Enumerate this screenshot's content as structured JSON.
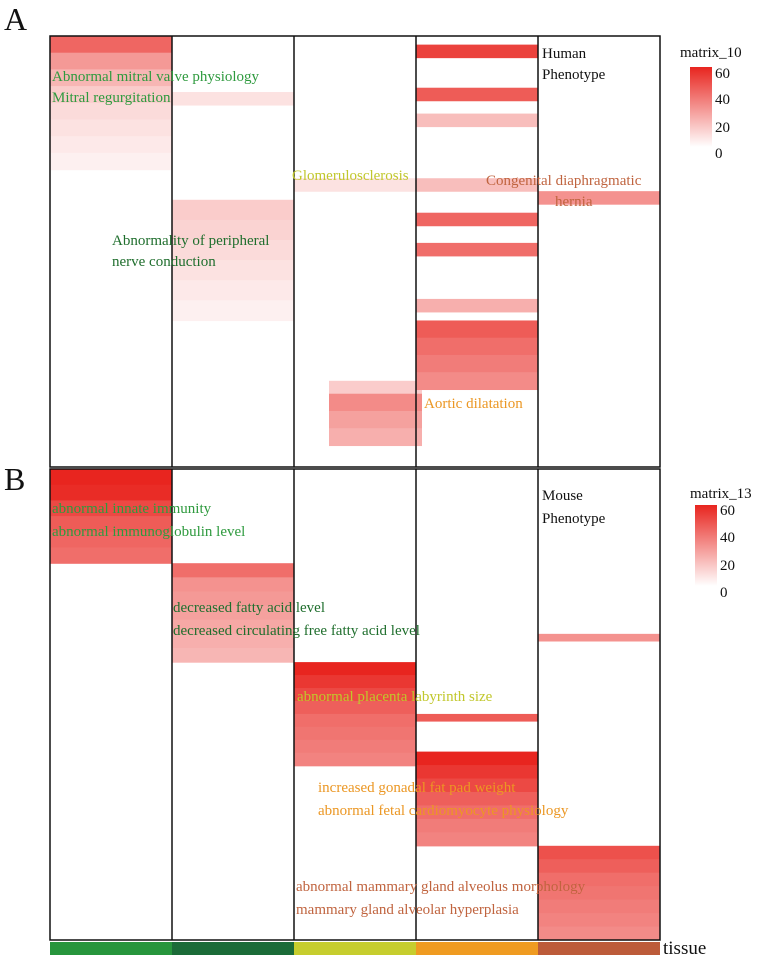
{
  "colors": {
    "heat_low": "#ffffff",
    "heat_high": "#e8251f",
    "tissue_1": "#27953c",
    "tissue_2": "#1b6b38",
    "tissue_3": "#c6cd2e",
    "tissue_4": "#ef9b21",
    "tissue_5": "#bc5b3a",
    "text_tissue_1": "#2e9a3e",
    "text_tissue_2": "#1f6e2d",
    "text_tissue_3": "#c1c72c",
    "text_tissue_4": "#eb9724",
    "text_tissue_5": "#c0643f"
  },
  "tissue_label": "tissue",
  "chart_data": [
    {
      "type": "heatmap",
      "panel": "A",
      "phenotype_label_lines": [
        "Human",
        "Phenotype"
      ],
      "legend": {
        "title": "matrix_10",
        "ticks": [
          0,
          20,
          40,
          60
        ],
        "range": [
          0,
          60
        ]
      },
      "columns": 5,
      "row_range": [
        0,
        100
      ],
      "blocks": [
        {
          "col": 0,
          "start": 0,
          "end": 31,
          "values": [
            42,
            28,
            20,
            14,
            10,
            8,
            6,
            4
          ]
        },
        {
          "col": 1,
          "start": 13,
          "end": 16,
          "values": [
            8
          ]
        },
        {
          "col": 1,
          "start": 38,
          "end": 66,
          "values": [
            14,
            12,
            10,
            8,
            6,
            4
          ]
        },
        {
          "col": 2,
          "start": 33,
          "end": 36,
          "values": [
            8
          ]
        },
        {
          "col": 2,
          "start": 80,
          "end": 83,
          "values": [
            14
          ]
        },
        {
          "col": 2,
          "start": 83,
          "end": 95,
          "values": [
            32,
            26,
            22
          ]
        },
        {
          "col": 3,
          "start": 2,
          "end": 5,
          "values": [
            52
          ]
        },
        {
          "col": 3,
          "start": 12,
          "end": 15,
          "values": [
            45
          ]
        },
        {
          "col": 3,
          "start": 18,
          "end": 21,
          "values": [
            18
          ]
        },
        {
          "col": 3,
          "start": 33,
          "end": 36,
          "values": [
            18
          ]
        },
        {
          "col": 3,
          "start": 41,
          "end": 44,
          "values": [
            42
          ]
        },
        {
          "col": 3,
          "start": 48,
          "end": 51,
          "values": [
            40
          ]
        },
        {
          "col": 3,
          "start": 61,
          "end": 64,
          "values": [
            22
          ]
        },
        {
          "col": 3,
          "start": 66,
          "end": 82,
          "values": [
            45,
            40,
            36,
            32
          ]
        },
        {
          "col": 4,
          "start": 36,
          "end": 39,
          "values": [
            30
          ]
        }
      ],
      "labels": [
        {
          "lines": [
            "Abnormal mitral valve physiology",
            "Mitral regurgitation"
          ],
          "tissue": 1
        },
        {
          "lines": [
            "Abnormality of peripheral",
            "nerve conduction"
          ],
          "tissue": 2
        },
        {
          "lines": [
            "Glomerulosclerosis"
          ],
          "tissue": 3
        },
        {
          "lines": [
            "Aortic dilatation"
          ],
          "tissue": 4
        },
        {
          "lines": [
            "Congenital diaphragmatic",
            "hernia"
          ],
          "tissue": 5
        }
      ]
    },
    {
      "type": "heatmap",
      "panel": "B",
      "phenotype_label_lines": [
        "Mouse",
        "Phenotype"
      ],
      "legend": {
        "title": "matrix_13",
        "ticks": [
          0,
          20,
          40,
          60
        ],
        "range": [
          0,
          60
        ]
      },
      "columns": 5,
      "row_range": [
        0,
        100
      ],
      "blocks": [
        {
          "col": 0,
          "start": 0,
          "end": 20,
          "values": [
            60,
            58,
            50,
            45,
            42,
            40
          ]
        },
        {
          "col": 1,
          "start": 20,
          "end": 41,
          "values": [
            40,
            30,
            28,
            26,
            24,
            22,
            20
          ]
        },
        {
          "col": 2,
          "start": 41,
          "end": 63,
          "values": [
            60,
            55,
            50,
            44,
            40,
            38,
            36,
            34
          ]
        },
        {
          "col": 3,
          "start": 52,
          "end": 53.5,
          "values": [
            45
          ]
        },
        {
          "col": 3,
          "start": 60,
          "end": 80,
          "values": [
            60,
            55,
            50,
            44,
            40,
            36,
            34
          ]
        },
        {
          "col": 4,
          "start": 35,
          "end": 36.5,
          "values": [
            30
          ]
        },
        {
          "col": 4,
          "start": 80,
          "end": 100,
          "values": [
            48,
            44,
            40,
            38,
            36,
            34,
            32
          ]
        }
      ],
      "labels": [
        {
          "lines": [
            "abnormal innate immunity",
            "abnormal immunoglobulin level"
          ],
          "tissue": 1
        },
        {
          "lines": [
            "decreased fatty acid level",
            "decreased circulating free fatty acid level"
          ],
          "tissue": 2
        },
        {
          "lines": [
            "abnormal placenta labyrinth size"
          ],
          "tissue": 3
        },
        {
          "lines": [
            "increased gonadal fat pad weight",
            "abnormal fetal cardiomyocyte physiology"
          ],
          "tissue": 4
        },
        {
          "lines": [
            "abnormal mammary gland alveolus morphology",
            "mammary gland alveolar hyperplasia"
          ],
          "tissue": 5
        }
      ]
    }
  ]
}
